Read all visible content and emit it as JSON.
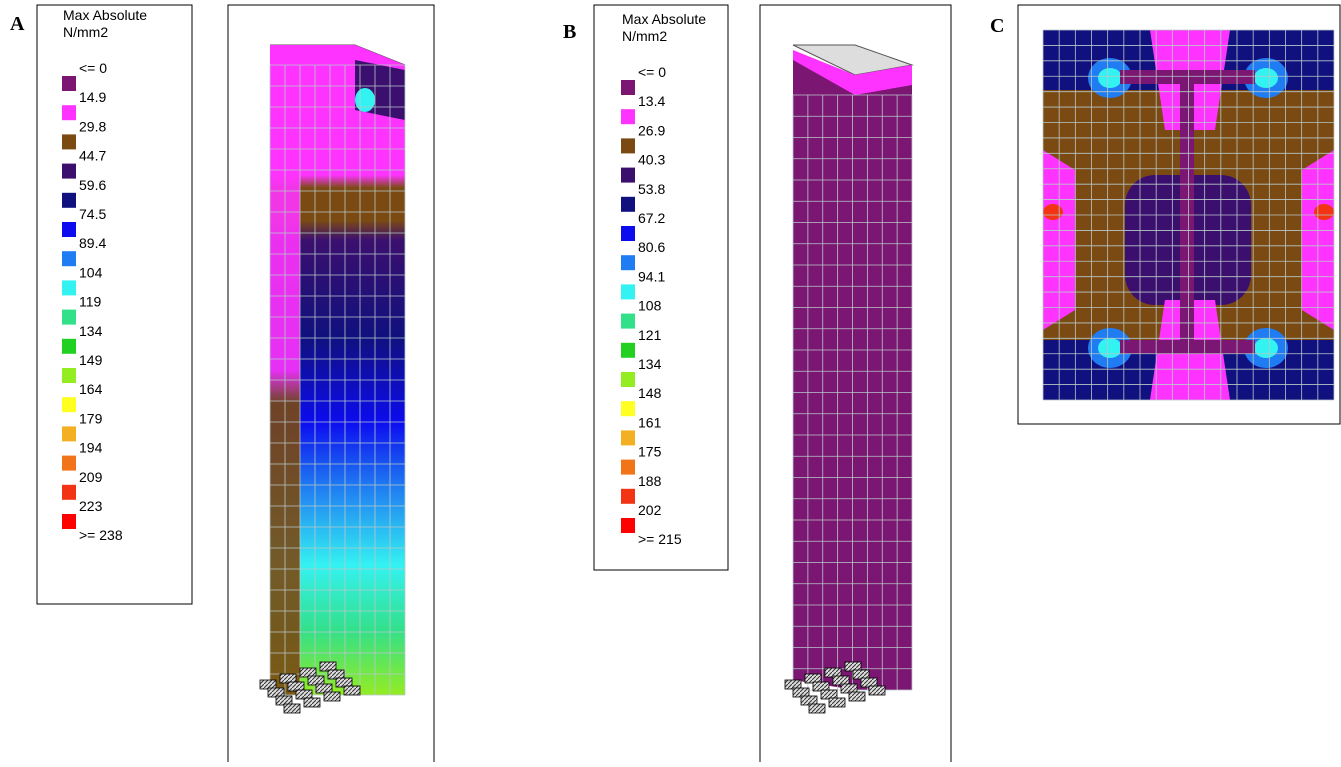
{
  "panels": [
    {
      "label": "A",
      "legend": {
        "title": "Max Absolute",
        "unit": "N/mm2",
        "labels": [
          "<= 0",
          "14.9",
          "29.8",
          "44.7",
          "59.6",
          "74.5",
          "89.4",
          "104",
          "119",
          "134",
          "149",
          "164",
          "179",
          "194",
          "209",
          "223",
          ">= 238"
        ],
        "colors": [
          "#7b1672",
          "#ff33ff",
          "#7a4a12",
          "#3b0f6e",
          "#10107e",
          "#0c0cef",
          "#1f7cf2",
          "#33f2f2",
          "#33e08a",
          "#22d022",
          "#94ec22",
          "#ffff22",
          "#f2b022",
          "#f27418",
          "#f23414",
          "#ff0000"
        ]
      }
    },
    {
      "label": "B",
      "legend": {
        "title": "Max Absolute",
        "unit": "N/mm2",
        "labels": [
          "<= 0",
          "13.4",
          "26.9",
          "40.3",
          "53.8",
          "67.2",
          "80.6",
          "94.1",
          "108",
          "121",
          "134",
          "148",
          "161",
          "175",
          "188",
          "202",
          ">= 215"
        ],
        "colors": [
          "#7b1672",
          "#ff33ff",
          "#7a4a12",
          "#3b0f6e",
          "#10107e",
          "#0c0cef",
          "#1f7cf2",
          "#33f2f2",
          "#33e08a",
          "#22d022",
          "#94ec22",
          "#ffff22",
          "#f2b022",
          "#f27418",
          "#f23414",
          "#ff0000"
        ]
      }
    },
    {
      "label": "C"
    }
  ]
}
